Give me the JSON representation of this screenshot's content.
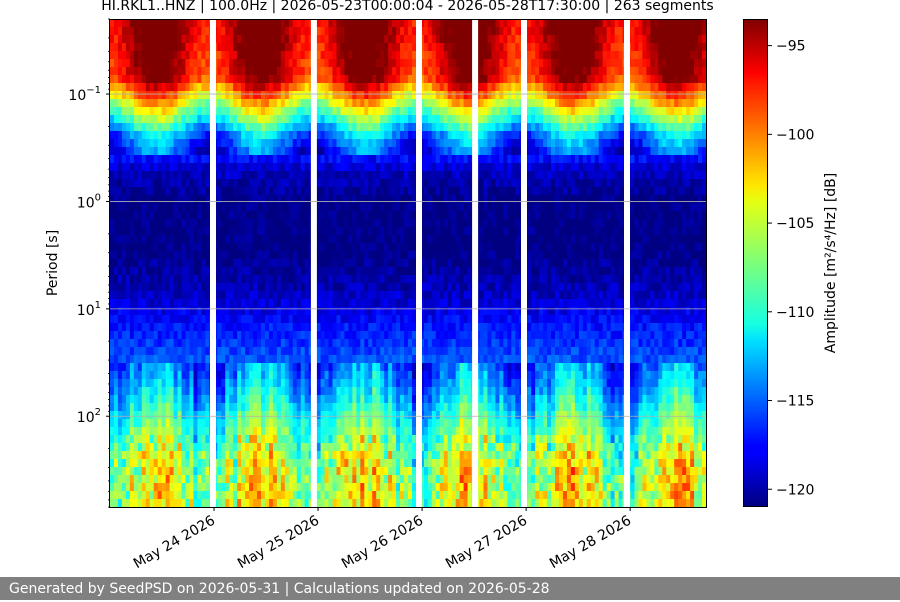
{
  "chart_data": {
    "type": "heatmap",
    "title": "HI.RKL1..HNZ | 100.0Hz | 2026-05-23T00:00:04 - 2026-05-28T17:30:00 | 263 segments",
    "ylabel": "Period [s]",
    "colorbar_label": "Amplitude [m²/s⁴/Hz] [dB]",
    "x_range": [
      "2026-05-23T00:00:04",
      "2026-05-28T17:30:00"
    ],
    "x_tick_labels": [
      "May 24 2026",
      "May 25 2026",
      "May 26 2026",
      "May 27 2026",
      "May 28 2026"
    ],
    "y_scale": "log",
    "y_range": [
      0.02,
      700
    ],
    "y_inverted": true,
    "y_ticks": [
      {
        "value": 0.1,
        "base": "10",
        "exp": "−1"
      },
      {
        "value": 1,
        "base": "10",
        "exp": "0"
      },
      {
        "value": 10,
        "base": "10",
        "exp": "1"
      },
      {
        "value": 100,
        "base": "10",
        "exp": "2"
      }
    ],
    "grid": "horizontal",
    "colorbar": {
      "colormap": "jet",
      "range": [
        -121,
        -93.5
      ],
      "ticks": [
        -95,
        -100,
        -105,
        -110,
        -115,
        -120
      ],
      "tick_labels": [
        "−95",
        "−100",
        "−105",
        "−110",
        "−115",
        "−120"
      ]
    },
    "segments_count": 263,
    "data_gaps_days": [
      0.99,
      1.96,
      2.97,
      3.51,
      3.98,
      4.97
    ],
    "level_profile": [
      {
        "period": 0.02,
        "db": -94
      },
      {
        "period": 0.07,
        "db": -96
      },
      {
        "period": 0.15,
        "db": -107
      },
      {
        "period": 0.25,
        "db": -114
      },
      {
        "period": 0.5,
        "db": -119
      },
      {
        "period": 1,
        "db": -121
      },
      {
        "period": 3,
        "db": -121
      },
      {
        "period": 8,
        "db": -119
      },
      {
        "period": 15,
        "db": -117
      },
      {
        "period": 35,
        "db": -115
      },
      {
        "period": 70,
        "db": -112
      },
      {
        "period": 120,
        "db": -109
      },
      {
        "period": 250,
        "db": -106
      },
      {
        "period": 700,
        "db": -105
      }
    ]
  },
  "footer": {
    "text": "Generated by SeedPSD on 2026-05-31 | Calculations updated on 2026-05-28"
  }
}
